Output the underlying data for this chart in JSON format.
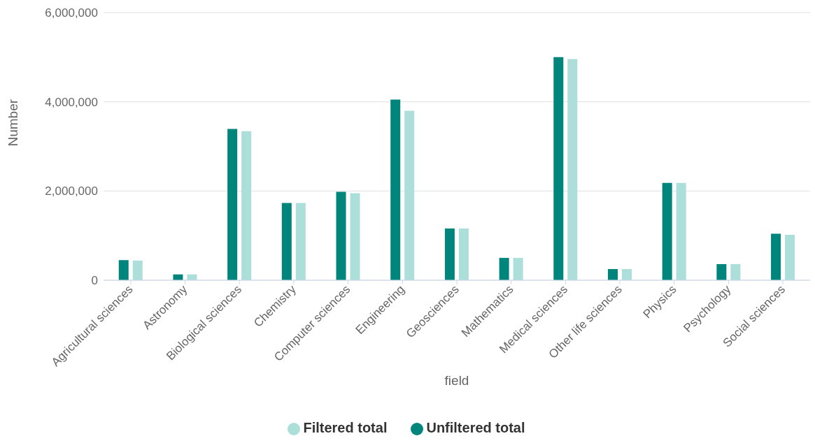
{
  "chart_data": {
    "type": "bar",
    "xlabel": "field",
    "ylabel": "Number",
    "categories": [
      "Agricultural sciences",
      "Astronomy",
      "Biological sciences",
      "Chemistry",
      "Computer sciences",
      "Engineering",
      "Geosciences",
      "Mathematics",
      "Medical sciences",
      "Other life sciences",
      "Physics",
      "Psychology",
      "Social sciences"
    ],
    "series": [
      {
        "name": "Unfiltered total",
        "color": "#00857c",
        "values": [
          450000,
          130000,
          3390000,
          1730000,
          1980000,
          4050000,
          1160000,
          500000,
          5000000,
          250000,
          2180000,
          360000,
          1040000
        ]
      },
      {
        "name": "Filtered total",
        "color": "#acdeda",
        "values": [
          440000,
          130000,
          3340000,
          1730000,
          1950000,
          3800000,
          1160000,
          500000,
          4960000,
          250000,
          2180000,
          360000,
          1020000
        ]
      }
    ],
    "ylim": [
      0,
      6000000
    ],
    "yticks": [
      {
        "value": 0,
        "label": "0"
      },
      {
        "value": 2000000,
        "label": "2,000,000"
      },
      {
        "value": 4000000,
        "label": "4,000,000"
      },
      {
        "value": 6000000,
        "label": "6,000,000"
      }
    ],
    "grid": "y",
    "legend": "bottom"
  }
}
